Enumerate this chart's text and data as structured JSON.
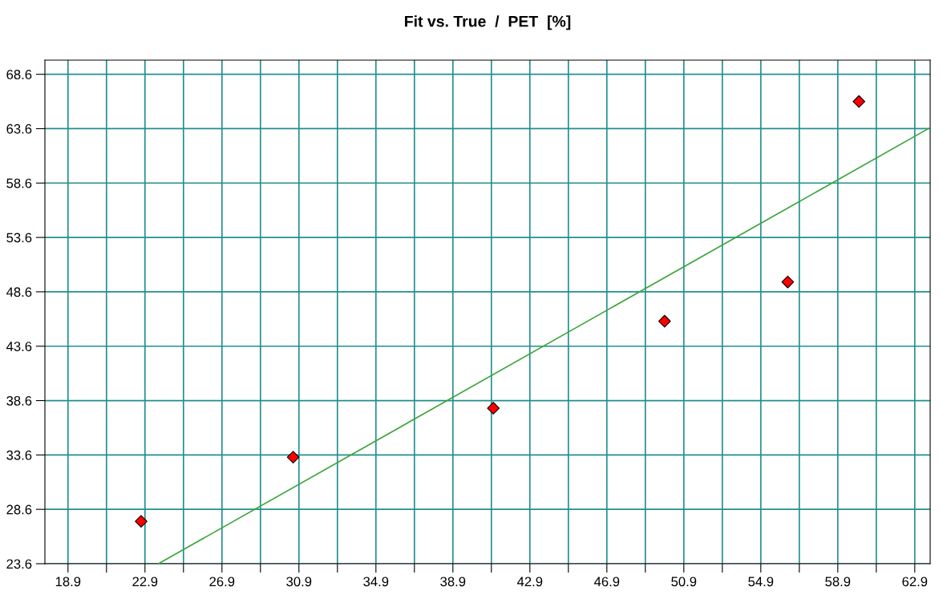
{
  "chart_data": {
    "type": "scatter",
    "title": "Fit vs. True  /  PET  [%]",
    "series": [
      {
        "color": "#ff0000",
        "marker": "diamond",
        "x": [
          22.7,
          30.6,
          41.0,
          49.9,
          56.3,
          60.0
        ],
        "values": [
          27.5,
          33.4,
          37.9,
          45.9,
          49.5,
          66.1
        ]
      },
      {
        "type": "line",
        "color": "#3aa53a",
        "marker": "none",
        "line_style": "solid",
        "x": [
          23.6,
          63.7
        ],
        "values": [
          23.6,
          63.7
        ]
      }
    ],
    "xlim": [
      17.7,
      63.7
    ],
    "ylim": [
      23.6,
      69.9
    ],
    "xticks": [
      18.9,
      {
        "value": 20.9,
        "label": null
      },
      22.9,
      {
        "value": 24.9,
        "label": null
      },
      26.9,
      {
        "value": 28.9,
        "label": null
      },
      30.9,
      {
        "value": 32.9,
        "label": null
      },
      34.9,
      {
        "value": 36.9,
        "label": null
      },
      38.9,
      {
        "value": 40.9,
        "label": null
      },
      42.9,
      {
        "value": 44.9,
        "label": null
      },
      46.9,
      {
        "value": 48.9,
        "label": null
      },
      50.9,
      {
        "value": 52.9,
        "label": null
      },
      54.9,
      {
        "value": 56.9,
        "label": null
      },
      58.9,
      {
        "value": 60.9,
        "label": null
      },
      62.9
    ],
    "yticks": [
      23.6,
      28.6,
      33.6,
      38.6,
      43.6,
      48.6,
      53.6,
      58.6,
      63.6,
      68.6
    ],
    "grid": true,
    "legend": false
  }
}
